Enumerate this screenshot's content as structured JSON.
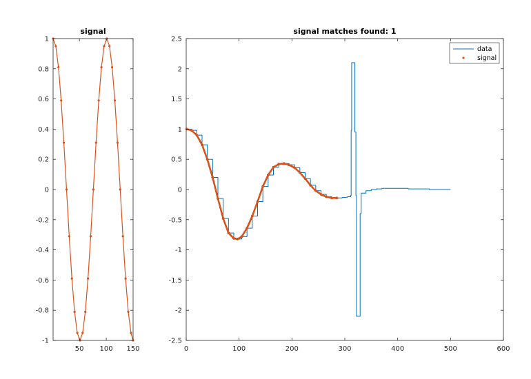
{
  "colors": {
    "data": "#0072bd",
    "signal": "#d95319",
    "axis": "#262626",
    "background": "#ffffff"
  },
  "chart_data": [
    {
      "type": "line",
      "title": "signal",
      "xlabel": "",
      "ylabel": "",
      "xlim": [
        1,
        150
      ],
      "ylim": [
        -1,
        1
      ],
      "xticks": [
        50,
        100,
        150
      ],
      "yticks": [
        -1,
        -0.8,
        -0.6,
        -0.4,
        -0.2,
        0,
        0.2,
        0.4,
        0.6,
        0.8,
        1
      ],
      "xtick_labels": [
        "50",
        "100",
        "150"
      ],
      "ytick_labels": [
        "-1",
        "-0.8",
        "-0.6",
        "-0.4",
        "-0.2",
        "0",
        "0.2",
        "0.4",
        "0.6",
        "0.8",
        "1"
      ],
      "grid": false,
      "series": [
        {
          "name": "signal",
          "style": "line with dot markers",
          "x": [
            1,
            6,
            11,
            16,
            21,
            26,
            31,
            36,
            41,
            46,
            51,
            56,
            61,
            66,
            71,
            76,
            81,
            86,
            91,
            96,
            101,
            106,
            111,
            116,
            121,
            126,
            131,
            136,
            141,
            146,
            150
          ],
          "y": [
            1,
            0.95,
            0.81,
            0.59,
            0.31,
            0,
            -0.31,
            -0.59,
            -0.81,
            -0.95,
            -1,
            -0.95,
            -0.81,
            -0.59,
            -0.31,
            0,
            0.31,
            0.59,
            0.81,
            0.95,
            1,
            0.95,
            0.81,
            0.59,
            0.31,
            0,
            -0.31,
            -0.59,
            -0.81,
            -0.95,
            -1
          ]
        }
      ]
    },
    {
      "type": "line",
      "title": "signal matches found: 1",
      "xlabel": "",
      "ylabel": "",
      "xlim": [
        0,
        600
      ],
      "ylim": [
        -2.5,
        2.5
      ],
      "xticks": [
        0,
        100,
        200,
        300,
        400,
        500,
        600
      ],
      "yticks": [
        -2.5,
        -2,
        -1.5,
        -1,
        -0.5,
        0,
        0.5,
        1,
        1.5,
        2,
        2.5
      ],
      "xtick_labels": [
        "0",
        "100",
        "200",
        "300",
        "400",
        "500",
        "600"
      ],
      "ytick_labels": [
        "-2.5",
        "-2",
        "-1.5",
        "-1",
        "-0.5",
        "0",
        "0.5",
        "1",
        "1.5",
        "2",
        "2.5"
      ],
      "grid": false,
      "legend": {
        "position": "top-right",
        "entries": [
          "data",
          "signal"
        ]
      },
      "series": [
        {
          "name": "data",
          "style": "line",
          "x": [
            1,
            10,
            20,
            30,
            40,
            50,
            60,
            70,
            80,
            90,
            97,
            105,
            115,
            125,
            135,
            145,
            155,
            165,
            175,
            185,
            194,
            205,
            215,
            225,
            235,
            245,
            255,
            265,
            275,
            285,
            295,
            305,
            311,
            312,
            313,
            318,
            319,
            321,
            322,
            328,
            329,
            331,
            340,
            350,
            360,
            370,
            380,
            400,
            420,
            440,
            460,
            480,
            500
          ],
          "y": [
            1,
            0.98,
            0.9,
            0.74,
            0.5,
            0.2,
            -0.15,
            -0.48,
            -0.72,
            -0.81,
            -0.82,
            -0.78,
            -0.64,
            -0.44,
            -0.2,
            0.05,
            0.24,
            0.37,
            0.42,
            0.43,
            0.41,
            0.36,
            0.28,
            0.18,
            0.07,
            -0.02,
            -0.08,
            -0.12,
            -0.14,
            -0.14,
            -0.13,
            -0.12,
            -0.1,
            0.98,
            2.1,
            2.1,
            0.95,
            -0.1,
            -2.1,
            -2.1,
            -0.4,
            -0.06,
            -0.02,
            0.0,
            0.01,
            0.02,
            0.02,
            0.02,
            0.01,
            0.01,
            0.0,
            0.0,
            0.0
          ]
        },
        {
          "name": "signal",
          "style": "line with dot markers",
          "x": [
            1,
            10,
            20,
            30,
            40,
            50,
            60,
            70,
            80,
            90,
            97,
            105,
            115,
            125,
            135,
            145,
            155,
            165,
            175,
            185,
            194,
            205,
            215,
            225,
            235,
            245,
            255,
            265,
            275,
            285
          ],
          "y": [
            1,
            0.98,
            0.9,
            0.74,
            0.5,
            0.2,
            -0.15,
            -0.48,
            -0.72,
            -0.81,
            -0.82,
            -0.78,
            -0.64,
            -0.44,
            -0.2,
            0.05,
            0.24,
            0.37,
            0.42,
            0.43,
            0.41,
            0.36,
            0.28,
            0.18,
            0.07,
            -0.02,
            -0.08,
            -0.12,
            -0.14,
            -0.14
          ]
        }
      ]
    }
  ]
}
